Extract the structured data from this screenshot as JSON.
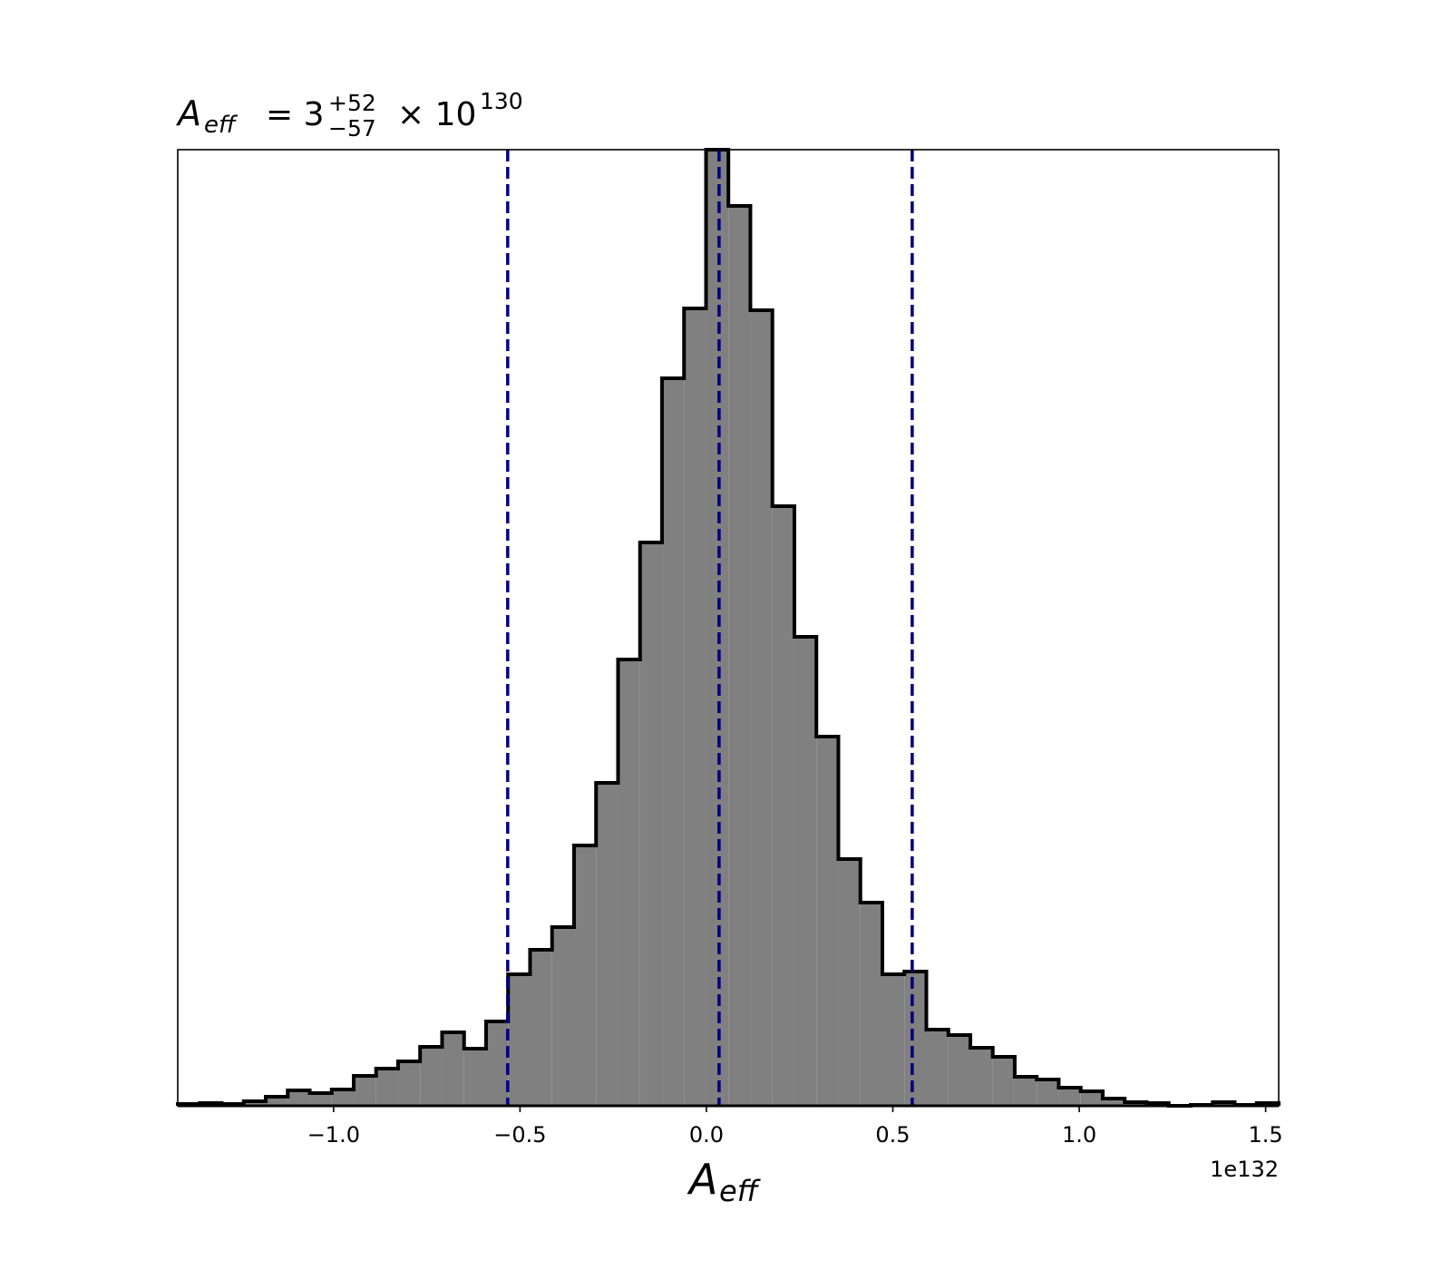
{
  "chart_data": {
    "type": "histogram",
    "title_parts": {
      "symbol": "A",
      "symbol_subscript": "eff",
      "equals": "= 3",
      "upper": "+52",
      "lower": "−57",
      "times": "× 10",
      "exponent": "130"
    },
    "xlabel": {
      "symbol": "A",
      "subscript": "eff"
    },
    "x_offset_label": "1e132",
    "bins": [
      -1.418,
      -1.359,
      -1.3,
      -1.241,
      -1.182,
      -1.123,
      -1.064,
      -1.005,
      -0.946,
      -0.886,
      -0.827,
      -0.768,
      -0.709,
      -0.65,
      -0.591,
      -0.532,
      -0.473,
      -0.414,
      -0.355,
      -0.296,
      -0.237,
      -0.178,
      -0.119,
      -0.06,
      -0.001,
      0.059,
      0.118,
      0.177,
      0.236,
      0.295,
      0.354,
      0.413,
      0.472,
      0.531,
      0.59,
      0.649,
      0.708,
      0.768,
      0.827,
      0.886,
      0.945,
      1.004,
      1.063,
      1.122,
      1.181,
      1.24,
      1.299,
      1.358,
      1.417,
      1.476,
      1.535
    ],
    "values": [
      2,
      3,
      2,
      5,
      10,
      17,
      14,
      18,
      33,
      41,
      49,
      65,
      81,
      63,
      93,
      145,
      172,
      197,
      287,
      356,
      492,
      621,
      802,
      879,
      1054,
      992,
      877,
      661,
      517,
      407,
      272,
      224,
      145,
      148,
      84,
      78,
      64,
      54,
      32,
      29,
      20,
      16,
      8,
      4,
      3,
      0,
      1,
      4,
      1,
      3
    ],
    "color": "#808080",
    "edge_color": "#000000",
    "vlines": [
      -0.533,
      0.034,
      0.552
    ],
    "vline_color": "#000080",
    "xlim": [
      -1.418,
      1.535
    ],
    "ylim": [
      0,
      1054
    ],
    "xticks": [
      {
        "value": -1,
        "label": "−1.0"
      },
      {
        "value": -0.5,
        "label": "−0.5"
      },
      {
        "value": 0,
        "label": "0.0"
      },
      0.5,
      {
        "value": 1,
        "label": "1.0"
      },
      1.5
    ]
  }
}
